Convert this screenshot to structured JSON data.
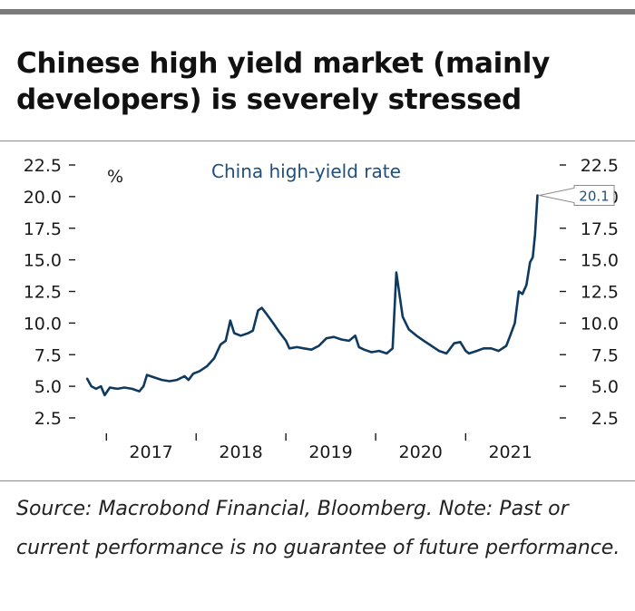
{
  "title": "Chinese high yield market (mainly developers) is severely stressed",
  "source": "Source: Macrobond Financial, Bloomberg. Note: Past or current performance is no guarantee of future performance.",
  "colors": {
    "line": "#0f3a5f",
    "label": "#1e4f7d",
    "text": "#1a1a1a"
  },
  "chart_data": {
    "type": "line",
    "series": [
      {
        "name": "China high-yield rate",
        "points": [
          [
            "2016-10-15",
            5.6
          ],
          [
            "2016-11-01",
            5.0
          ],
          [
            "2016-11-20",
            4.8
          ],
          [
            "2016-12-10",
            5.0
          ],
          [
            "2016-12-25",
            4.3
          ],
          [
            "2017-01-15",
            4.9
          ],
          [
            "2017-02-15",
            4.8
          ],
          [
            "2017-03-15",
            4.9
          ],
          [
            "2017-04-15",
            4.8
          ],
          [
            "2017-05-15",
            4.6
          ],
          [
            "2017-06-01",
            5.0
          ],
          [
            "2017-06-15",
            5.9
          ],
          [
            "2017-07-15",
            5.7
          ],
          [
            "2017-08-15",
            5.5
          ],
          [
            "2017-09-15",
            5.4
          ],
          [
            "2017-10-15",
            5.5
          ],
          [
            "2017-11-15",
            5.8
          ],
          [
            "2017-12-01",
            5.5
          ],
          [
            "2017-12-20",
            6.0
          ],
          [
            "2018-01-15",
            6.2
          ],
          [
            "2018-02-15",
            6.6
          ],
          [
            "2018-03-15",
            7.2
          ],
          [
            "2018-04-10",
            8.3
          ],
          [
            "2018-05-01",
            8.6
          ],
          [
            "2018-05-20",
            10.2
          ],
          [
            "2018-06-05",
            9.2
          ],
          [
            "2018-07-01",
            9.0
          ],
          [
            "2018-08-01",
            9.2
          ],
          [
            "2018-08-20",
            9.4
          ],
          [
            "2018-09-10",
            11.0
          ],
          [
            "2018-09-25",
            11.2
          ],
          [
            "2018-10-15",
            10.7
          ],
          [
            "2018-11-10",
            10.0
          ],
          [
            "2018-12-05",
            9.3
          ],
          [
            "2019-01-01",
            8.6
          ],
          [
            "2019-01-15",
            8.0
          ],
          [
            "2019-02-15",
            8.1
          ],
          [
            "2019-03-15",
            8.0
          ],
          [
            "2019-04-15",
            7.9
          ],
          [
            "2019-05-15",
            8.2
          ],
          [
            "2019-06-15",
            8.8
          ],
          [
            "2019-07-15",
            8.9
          ],
          [
            "2019-08-15",
            8.7
          ],
          [
            "2019-09-15",
            8.6
          ],
          [
            "2019-10-10",
            9.0
          ],
          [
            "2019-10-25",
            8.1
          ],
          [
            "2019-11-15",
            7.9
          ],
          [
            "2019-12-15",
            7.7
          ],
          [
            "2020-01-15",
            7.8
          ],
          [
            "2020-02-15",
            7.6
          ],
          [
            "2020-03-10",
            8.0
          ],
          [
            "2020-03-25",
            14.0
          ],
          [
            "2020-04-05",
            12.5
          ],
          [
            "2020-04-20",
            10.5
          ],
          [
            "2020-05-15",
            9.5
          ],
          [
            "2020-06-15",
            9.0
          ],
          [
            "2020-07-15",
            8.6
          ],
          [
            "2020-08-15",
            8.2
          ],
          [
            "2020-09-15",
            7.8
          ],
          [
            "2020-10-15",
            7.6
          ],
          [
            "2020-11-15",
            8.4
          ],
          [
            "2020-12-10",
            8.5
          ],
          [
            "2021-01-01",
            7.8
          ],
          [
            "2021-01-15",
            7.6
          ],
          [
            "2021-02-15",
            7.8
          ],
          [
            "2021-03-15",
            8.0
          ],
          [
            "2021-04-15",
            8.0
          ],
          [
            "2021-05-15",
            7.8
          ],
          [
            "2021-06-15",
            8.2
          ],
          [
            "2021-07-01",
            9.0
          ],
          [
            "2021-07-20",
            10.0
          ],
          [
            "2021-08-05",
            12.5
          ],
          [
            "2021-08-20",
            12.3
          ],
          [
            "2021-09-05",
            13.0
          ],
          [
            "2021-09-20",
            14.8
          ],
          [
            "2021-10-01",
            15.2
          ],
          [
            "2021-10-10",
            17.0
          ],
          [
            "2021-10-20",
            20.1
          ]
        ]
      }
    ],
    "series_label": "China high-yield rate",
    "last_value_label": "20.1",
    "y_unit": "%",
    "ylim": [
      2.5,
      22.5
    ],
    "yticks": [
      "2.5",
      "5.0",
      "7.5",
      "10.0",
      "12.5",
      "15.0",
      "17.5",
      "20.0",
      "22.5"
    ],
    "x_range": [
      "2016-09-15",
      "2021-12-31"
    ],
    "x_tick_labels": [
      "2017",
      "2018",
      "2019",
      "2020",
      "2021"
    ],
    "x_tick_dates": [
      "2017-07-02",
      "2018-07-02",
      "2019-07-02",
      "2020-07-02",
      "2021-07-02"
    ],
    "x_divider_dates": [
      "2017-01-01",
      "2018-01-01",
      "2019-01-01",
      "2020-01-01",
      "2021-01-01"
    ],
    "grid": false,
    "right_axis": true
  }
}
